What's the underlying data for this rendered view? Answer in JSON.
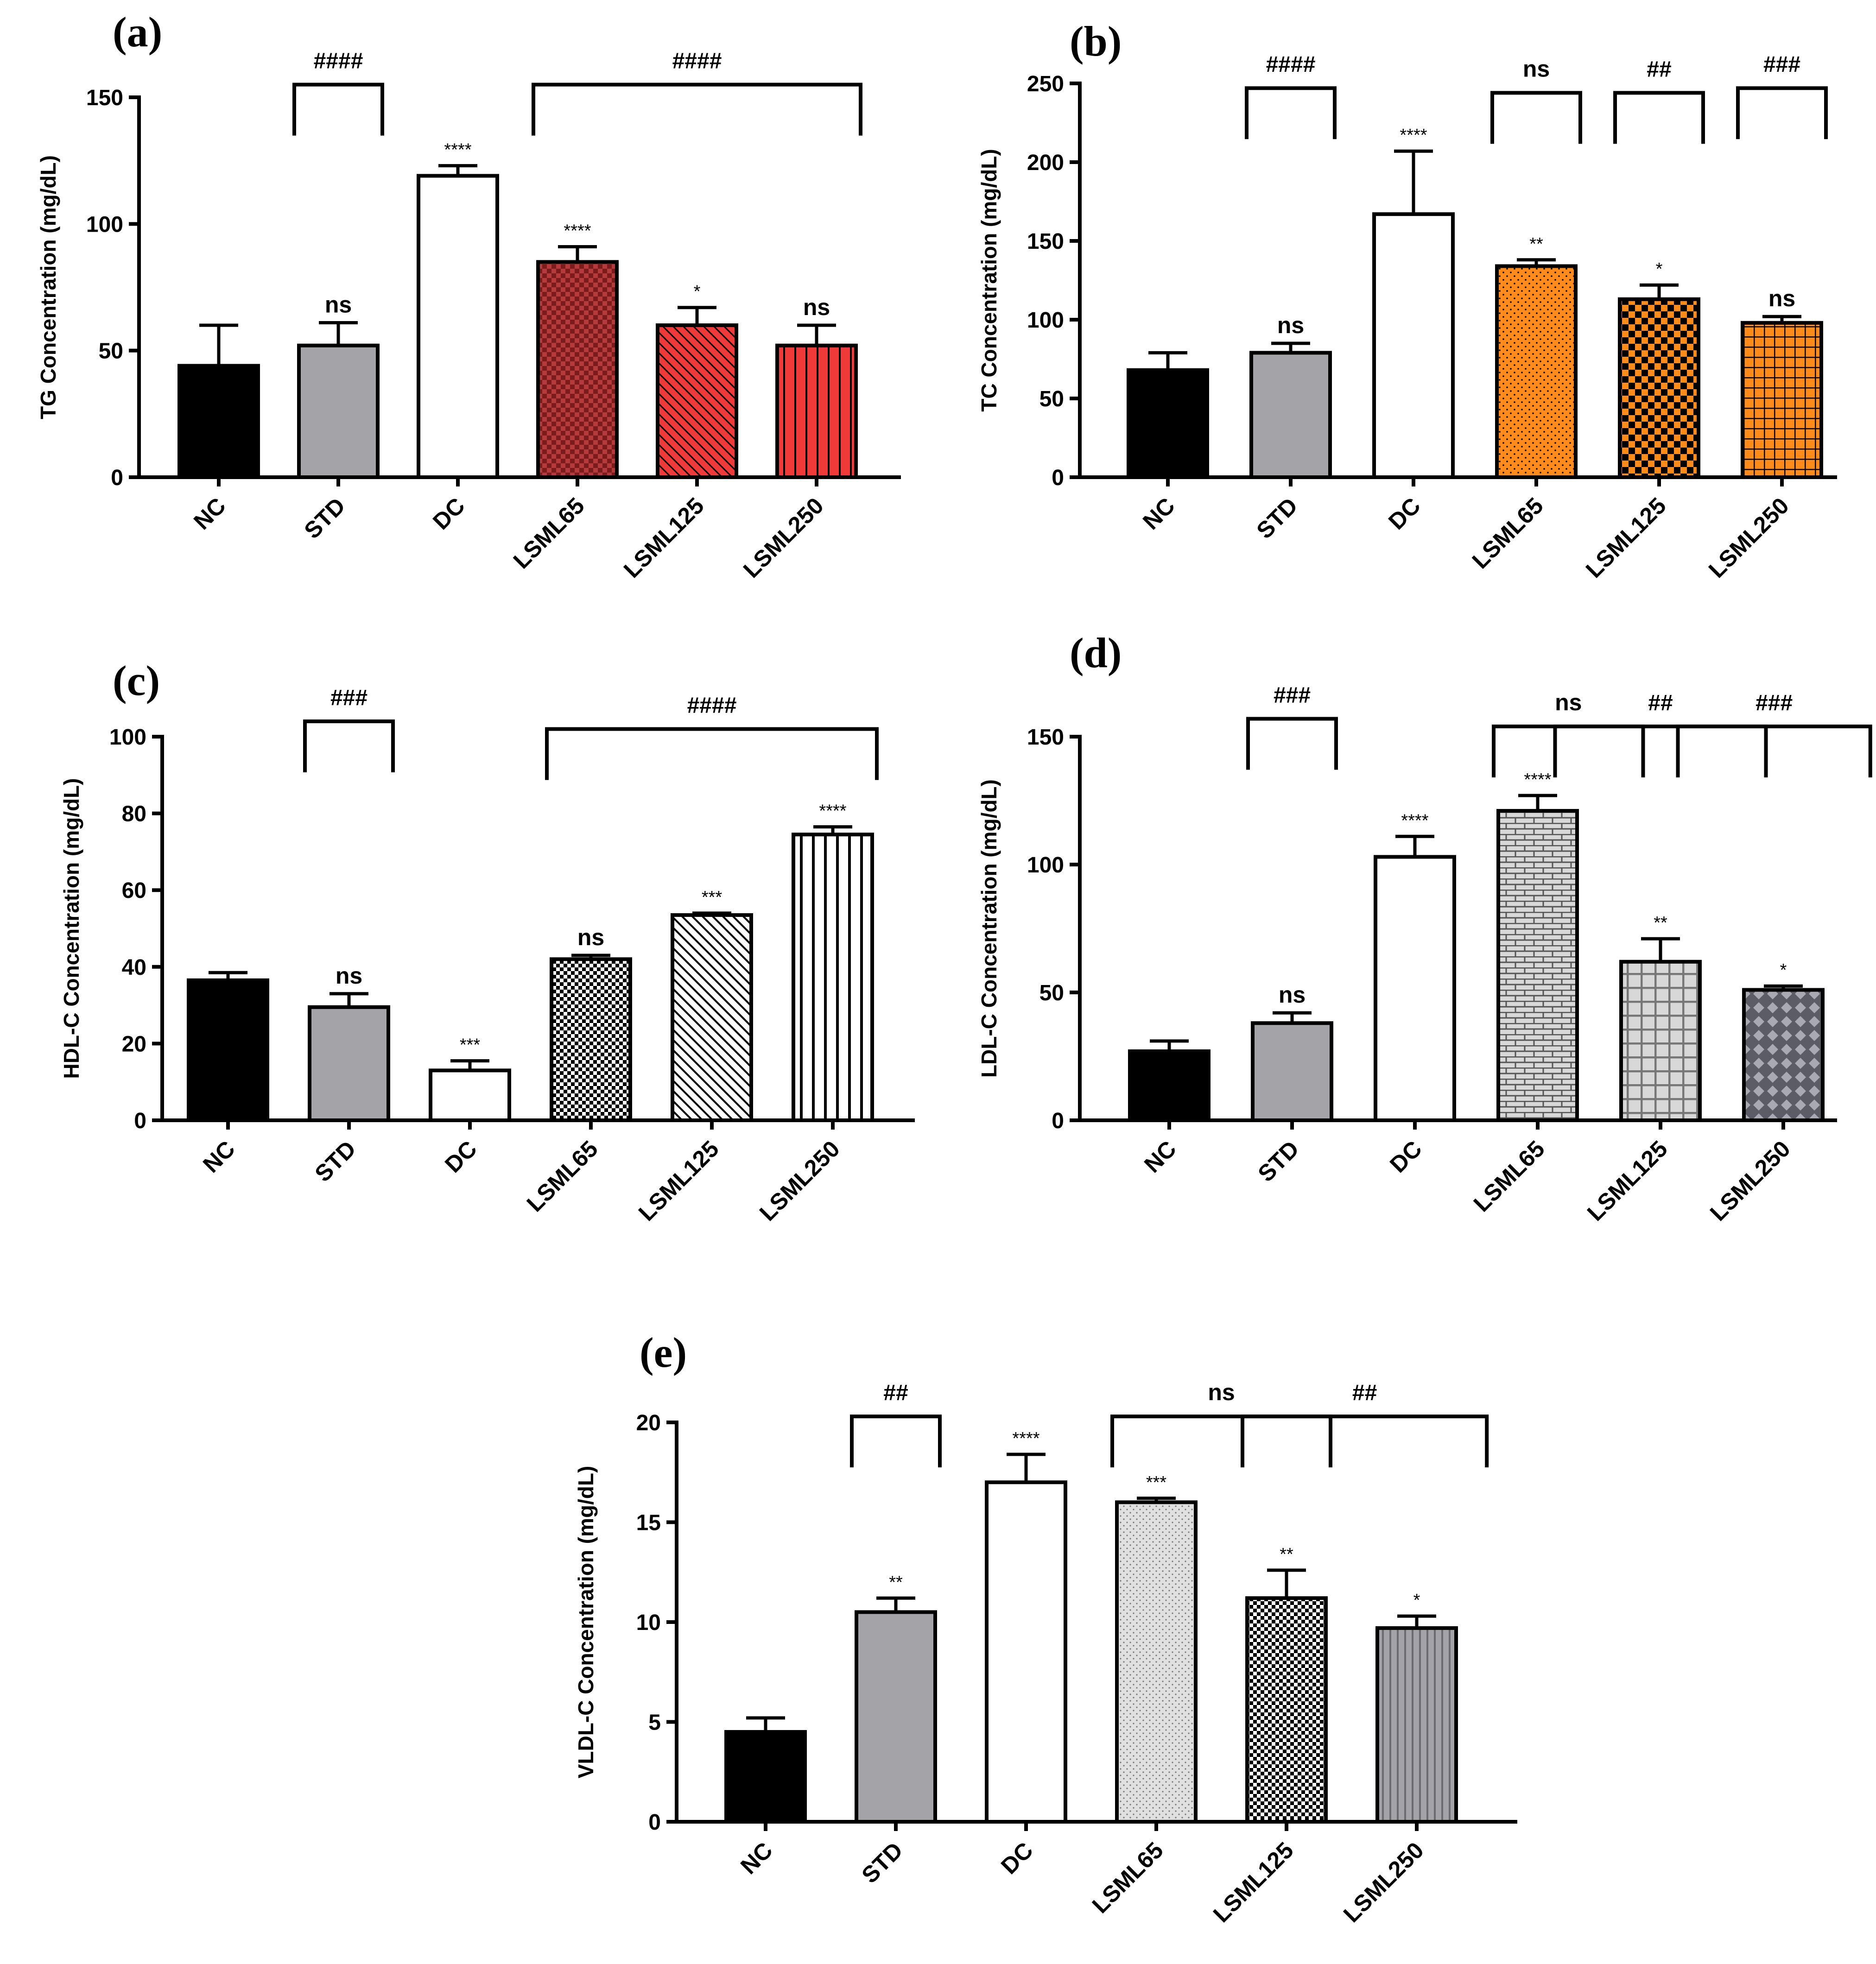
{
  "colors": {
    "black": "#000000",
    "gray": "#a3a3a8",
    "white": "#ffffff",
    "red_dark": "#b53a3a",
    "red": "#f03a3a",
    "orange": "#ff8c1a",
    "light_gray": "#d8d8d8",
    "dark_gray": "#5c5c66"
  },
  "chart_data": [
    {
      "panel": "(a)",
      "type": "bar",
      "ylabel": "TG Concentration (mg/dL)",
      "ylim": [
        0,
        150
      ],
      "yticks": [
        0,
        50,
        100,
        150
      ],
      "categories": [
        "NC",
        "STD",
        "DC",
        "LSML65",
        "LSML125",
        "LSML250"
      ],
      "values": [
        44,
        52,
        119,
        85,
        60,
        52
      ],
      "errors": [
        16,
        9,
        4,
        6,
        7,
        8
      ],
      "bar_sig": [
        "",
        "ns",
        "****",
        "****",
        "*",
        "ns"
      ],
      "fills": [
        "solid:black",
        "solid:gray",
        "solid:white",
        "checker:red_dark",
        "diag:red",
        "vert:red"
      ],
      "brackets": [
        {
          "label": "####",
          "from": 1,
          "to": 1,
          "level": 155
        },
        {
          "label": "####",
          "from": 3,
          "to": 5,
          "level": 155
        }
      ]
    },
    {
      "panel": "(b)",
      "type": "bar",
      "ylabel": "TC Concentration (mg/dL)",
      "ylim": [
        0,
        250
      ],
      "yticks": [
        0,
        50,
        100,
        150,
        200,
        250
      ],
      "categories": [
        "NC",
        "STD",
        "DC",
        "LSML65",
        "LSML125",
        "LSML250"
      ],
      "values": [
        68,
        79,
        167,
        134,
        113,
        98
      ],
      "errors": [
        11,
        6,
        40,
        4,
        9,
        4
      ],
      "bar_sig": [
        "",
        "ns",
        "****",
        "**",
        "*",
        "ns"
      ],
      "fills": [
        "solid:black",
        "solid:gray",
        "solid:white",
        "dots:orange",
        "checker:orange",
        "grid:orange"
      ],
      "brackets": [
        {
          "label": "####",
          "from": 1,
          "to": 1,
          "level": 247
        },
        {
          "label": "ns",
          "from": 3,
          "to": 3,
          "level": 244
        },
        {
          "label": "##",
          "from": 4,
          "to": 4,
          "level": 244
        },
        {
          "label": "###",
          "from": 5,
          "to": 5,
          "level": 247
        }
      ]
    },
    {
      "panel": "(c)",
      "type": "bar",
      "ylabel": "HDL-C Concentration (mg/dL)",
      "ylim": [
        0,
        100
      ],
      "yticks": [
        0,
        20,
        40,
        60,
        80,
        100
      ],
      "categories": [
        "NC",
        "STD",
        "DC",
        "LSML65",
        "LSML125",
        "LSML250"
      ],
      "values": [
        36.5,
        29.5,
        13,
        42,
        53.5,
        74.5
      ],
      "errors": [
        2,
        3.5,
        2.5,
        1,
        0.5,
        2
      ],
      "bar_sig": [
        "",
        "ns",
        "***",
        "ns",
        "***",
        "****"
      ],
      "fills": [
        "solid:black",
        "solid:gray",
        "solid:white",
        "checker:white",
        "diag:white",
        "vert:white"
      ],
      "brackets": [
        {
          "label": "###",
          "from": 1,
          "to": 1,
          "level": 104
        },
        {
          "label": "####",
          "from": 3,
          "to": 5,
          "level": 102
        }
      ]
    },
    {
      "panel": "(d)",
      "type": "bar",
      "ylabel": "LDL-C Concentration (mg/dL)",
      "ylim": [
        0,
        150
      ],
      "yticks": [
        0,
        50,
        100,
        150
      ],
      "categories": [
        "NC",
        "STD",
        "DC",
        "LSML65",
        "LSML125",
        "LSML250"
      ],
      "values": [
        27,
        38,
        103,
        121,
        62,
        51
      ],
      "errors": [
        4,
        4,
        8,
        6,
        9,
        1.5
      ],
      "bar_sig": [
        "",
        "ns",
        "****",
        "****",
        "**",
        "*"
      ],
      "fills": [
        "solid:black",
        "solid:gray",
        "solid:white",
        "brick:light_gray",
        "grid:light_gray",
        "diamond:dark_gray"
      ],
      "brackets": [
        {
          "label": "###",
          "from": 1,
          "to": 1,
          "level": 157
        },
        {
          "label": "ns",
          "from": 3,
          "to": 3.5,
          "level": 154
        },
        {
          "label": "##",
          "from": 3.5,
          "to": 4.5,
          "level": 154
        },
        {
          "label": "###",
          "from": 4.5,
          "to": 5.35,
          "level": 154
        }
      ]
    },
    {
      "panel": "(e)",
      "type": "bar",
      "ylabel": "VLDL-C Concentration (mg/dL)",
      "ylim": [
        0,
        20
      ],
      "yticks": [
        0,
        5,
        10,
        15,
        20
      ],
      "categories": [
        "NC",
        "STD",
        "DC",
        "LSML65",
        "LSML125",
        "LSML250"
      ],
      "values": [
        4.5,
        10.5,
        17,
        16,
        11.2,
        9.7
      ],
      "errors": [
        0.7,
        0.7,
        1.4,
        0.2,
        1.4,
        0.6
      ],
      "bar_sig": [
        "",
        "**",
        "****",
        "***",
        "**",
        "*"
      ],
      "fills": [
        "solid:black",
        "solid:gray",
        "solid:white",
        "dots:light_gray",
        "checker:white",
        "vert:gray"
      ],
      "brackets": [
        {
          "label": "##",
          "from": 1,
          "to": 1,
          "level": 20.3
        },
        {
          "label": "ns",
          "from": 3,
          "to": 4,
          "level": 20.3
        },
        {
          "label": "##",
          "from": 4,
          "to": 5.2,
          "level": 20.3
        }
      ]
    }
  ]
}
